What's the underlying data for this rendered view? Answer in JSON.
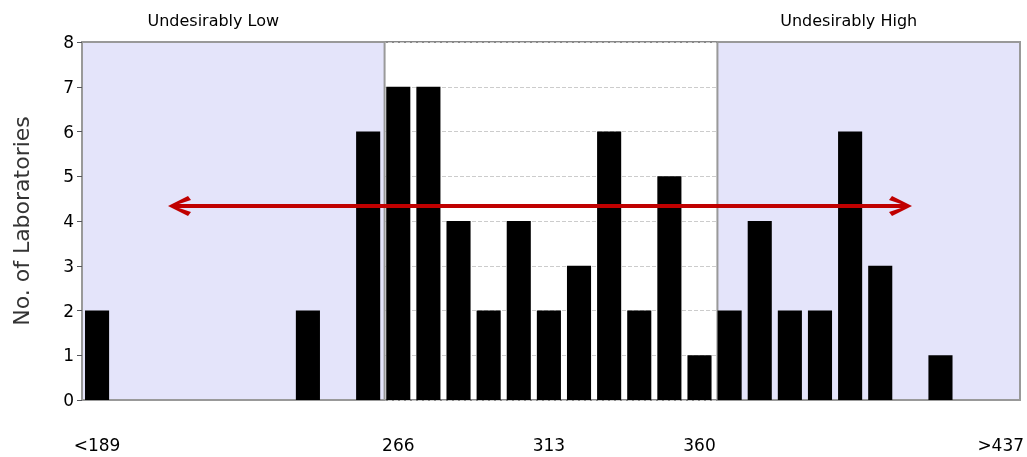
{
  "chart_data": {
    "type": "bar",
    "ylabel": "No. of Laboratories",
    "categories": [
      "<189",
      null,
      null,
      null,
      null,
      null,
      null,
      null,
      null,
      null,
      "266",
      null,
      null,
      null,
      null,
      "313",
      null,
      null,
      null,
      null,
      "360",
      null,
      null,
      null,
      null,
      null,
      null,
      null,
      null,
      null,
      ">437"
    ],
    "values": [
      2,
      0,
      0,
      0,
      0,
      0,
      0,
      2,
      0,
      6,
      7,
      7,
      4,
      2,
      4,
      2,
      3,
      6,
      2,
      5,
      1,
      2,
      4,
      2,
      2,
      6,
      3,
      0,
      1,
      0,
      0
    ],
    "color": "#000000",
    "ylim": [
      0,
      8
    ],
    "yticks": [
      0,
      1,
      2,
      3,
      4,
      5,
      6,
      7,
      8
    ],
    "grid": "y",
    "bands": [
      {
        "axis": "x",
        "from": "<189",
        "to": "266",
        "label": "Undesirably Low",
        "color": "#e4e4fa"
      },
      {
        "axis": "x",
        "from": "360",
        "to": ">437",
        "label": "Undesirably High",
        "color": "#e4e4fa"
      }
    ]
  }
}
